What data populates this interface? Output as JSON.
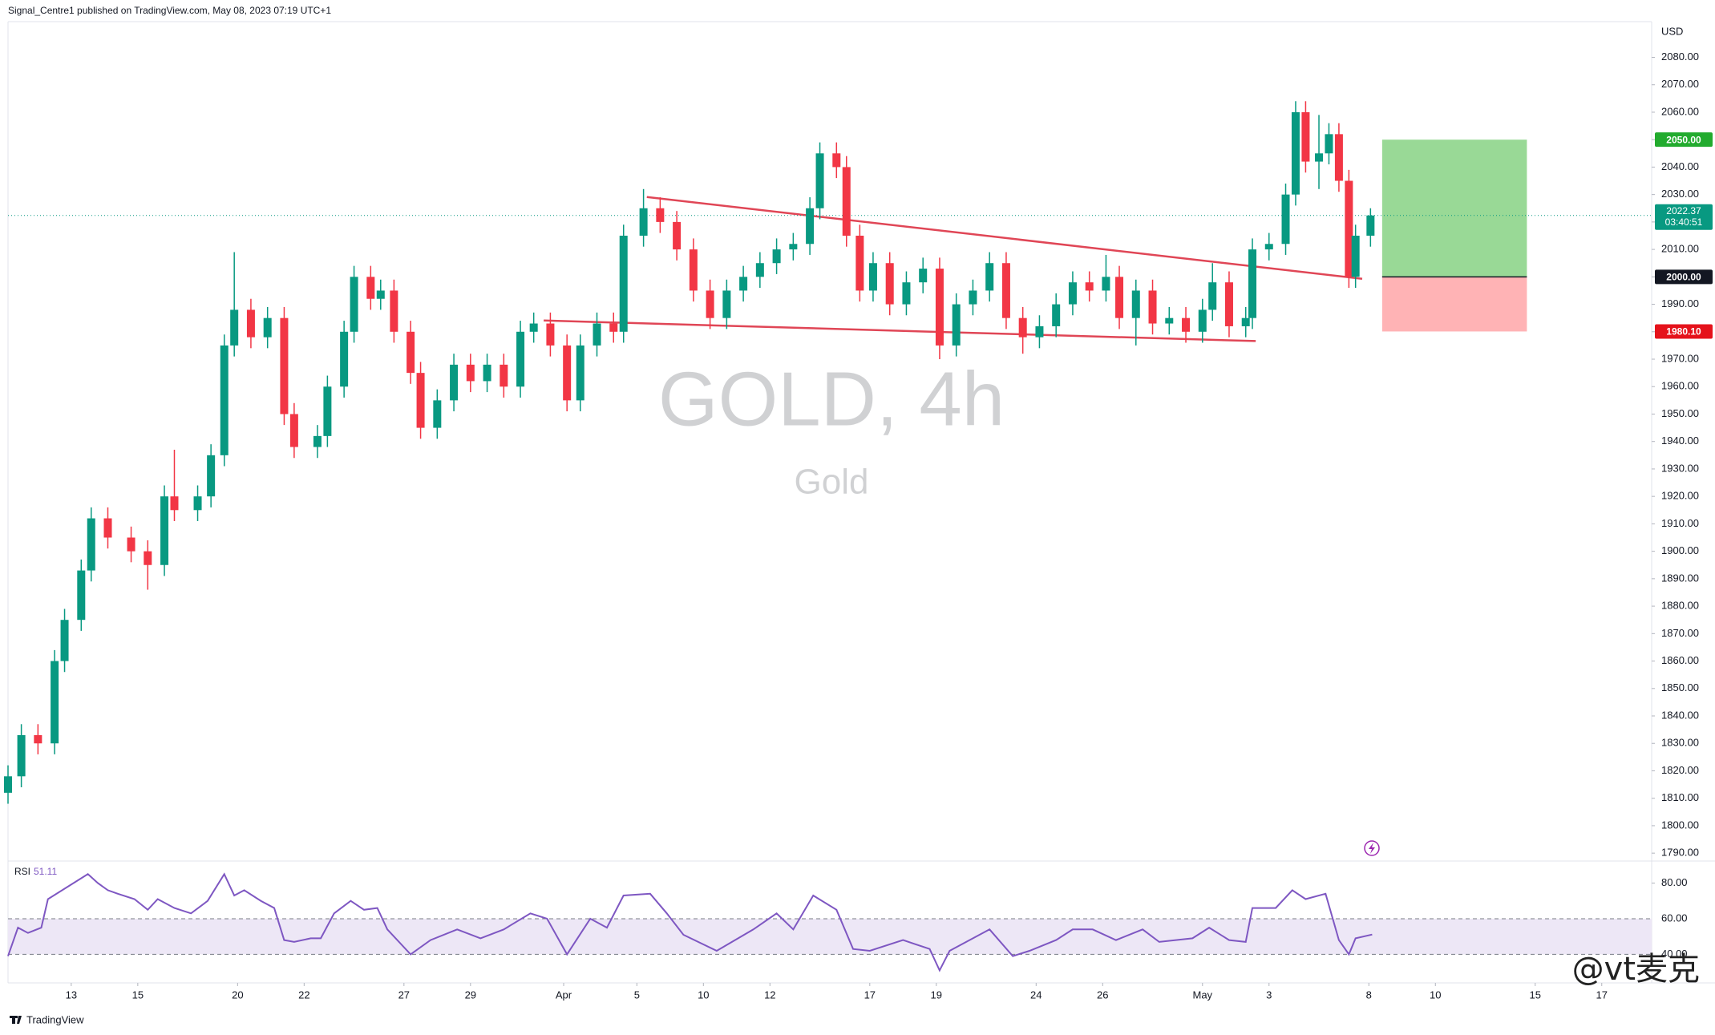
{
  "chart_data": {
    "type": "candlestick",
    "header": "Signal_Centre1 published on TradingView.com, May 08, 2023 07:19 UTC+1",
    "title": "GOLD, 4h",
    "subtitle": "Gold",
    "currency": "USD",
    "branding": "TradingView",
    "watermark": "@vt麦克",
    "up_color": "#089981",
    "down_color": "#f23645",
    "x": [
      -1.9,
      -1.5,
      -1.0,
      -0.5,
      -0.2,
      0.3,
      0.6,
      1.1,
      1.8,
      2.3,
      2.8,
      3.1,
      3.8,
      4.2,
      4.6,
      4.9,
      5.4,
      5.9,
      6.4,
      6.7,
      7.4,
      7.7,
      8.2,
      8.5,
      9.0,
      9.3,
      9.7,
      10.2,
      10.5,
      11.0,
      11.5,
      12.0,
      12.5,
      13.0,
      13.5,
      13.9,
      14.4,
      14.9,
      15.3,
      15.8,
      16.3,
      16.6,
      17.2,
      17.7,
      18.2,
      18.7,
      19.2,
      19.7,
      20.2,
      20.7,
      21.2,
      21.7,
      22.2,
      22.5,
      23.0,
      23.3,
      23.7,
      24.1,
      24.6,
      25.1,
      25.6,
      26.1,
      26.6,
      27.1,
      27.6,
      28.1,
      28.6,
      29.1,
      29.6,
      30.1,
      30.6,
      31.1,
      31.5,
      32.0,
      32.5,
      33.0,
      33.5,
      34.0,
      34.3,
      34.8,
      35.3,
      35.5,
      36.0,
      36.5,
      36.8,
      37.1,
      37.5,
      37.8,
      38.1,
      38.4,
      38.6,
      39.05
    ],
    "open": [
      1812,
      1818,
      1833,
      1830,
      1860,
      1875,
      1893,
      1912,
      1905,
      1900,
      1895,
      1920,
      1915,
      1920,
      1935,
      1975,
      1988,
      1978,
      1985,
      1950,
      1938,
      1942,
      1960,
      1980,
      2000,
      1992,
      1995,
      1980,
      1965,
      1945,
      1955,
      1968,
      1962,
      1968,
      1960,
      1980,
      1983,
      1975,
      1955,
      1975,
      1983,
      1980,
      2015,
      2025,
      2020,
      2010,
      1995,
      1985,
      1995,
      2000,
      2005,
      2010,
      2012,
      2025,
      2045,
      2040,
      2015,
      1995,
      2005,
      1990,
      1998,
      2003,
      1975,
      1990,
      1995,
      2005,
      1985,
      1978,
      1982,
      1990,
      1998,
      1995,
      2000,
      1985,
      1995,
      1983,
      1985,
      1980,
      1988,
      1998,
      1982,
      1985,
      2010,
      2012,
      2030,
      2060,
      2042,
      2045,
      2052,
      2035,
      2000,
      2015
    ],
    "high": [
      1822,
      1837,
      1837,
      1864,
      1879,
      1897,
      1916,
      1916,
      1909,
      1904,
      1924,
      1937,
      1924,
      1939,
      1979,
      2009,
      1992,
      1989,
      1989,
      1954,
      1946,
      1964,
      1984,
      2004,
      2004,
      1999,
      1999,
      1984,
      1969,
      1959,
      1972,
      1972,
      1972,
      1972,
      1984,
      1987,
      1987,
      1979,
      1979,
      1987,
      1987,
      2019,
      2032,
      2029,
      2024,
      2014,
      1999,
      1999,
      2004,
      2009,
      2014,
      2016,
      2029,
      2049,
      2049,
      2044,
      2019,
      2009,
      2009,
      2002,
      2007,
      2007,
      1994,
      1999,
      2009,
      2009,
      1989,
      1986,
      1994,
      2002,
      2002,
      2008,
      2004,
      1999,
      1999,
      1989,
      1989,
      1992,
      2005,
      2002,
      1989,
      2014,
      2016,
      2034,
      2064,
      2064,
      2059,
      2056,
      2056,
      2039,
      2019,
      2025
    ],
    "low": [
      1808,
      1814,
      1826,
      1826,
      1856,
      1871,
      1889,
      1901,
      1896,
      1886,
      1891,
      1911,
      1911,
      1916,
      1931,
      1971,
      1974,
      1974,
      1946,
      1934,
      1934,
      1938,
      1956,
      1976,
      1988,
      1988,
      1976,
      1961,
      1941,
      1941,
      1951,
      1958,
      1958,
      1956,
      1956,
      1976,
      1971,
      1951,
      1951,
      1971,
      1976,
      1976,
      2011,
      2016,
      2006,
      1991,
      1981,
      1981,
      1991,
      1996,
      2001,
      2006,
      2008,
      2021,
      2036,
      2011,
      1991,
      1991,
      1986,
      1986,
      1994,
      1970,
      1971,
      1986,
      1991,
      1981,
      1972,
      1974,
      1978,
      1986,
      1991,
      1991,
      1981,
      1975,
      1979,
      1979,
      1976,
      1976,
      1984,
      1978,
      1978,
      1981,
      2006,
      2008,
      2026,
      2038,
      2032,
      2041,
      2031,
      1996,
      1996,
      2011
    ],
    "close": [
      1818,
      1833,
      1830,
      1860,
      1875,
      1893,
      1912,
      1905,
      1900,
      1895,
      1920,
      1915,
      1920,
      1935,
      1975,
      1988,
      1978,
      1985,
      1950,
      1938,
      1942,
      1960,
      1980,
      2000,
      1992,
      1995,
      1980,
      1965,
      1945,
      1955,
      1968,
      1962,
      1968,
      1960,
      1980,
      1983,
      1975,
      1955,
      1975,
      1983,
      1980,
      2015,
      2025,
      2020,
      2010,
      1995,
      1985,
      1995,
      2000,
      2005,
      2010,
      2012,
      2025,
      2045,
      2040,
      2015,
      1995,
      2005,
      1990,
      1998,
      2003,
      1975,
      1990,
      1995,
      2005,
      1985,
      1978,
      1982,
      1990,
      1998,
      1995,
      2000,
      1985,
      1995,
      1983,
      1985,
      1980,
      1988,
      1998,
      1982,
      1985,
      2010,
      2012,
      2030,
      2060,
      2042,
      2045,
      2052,
      2035,
      2000,
      2015,
      2022.37
    ],
    "xlim": [
      -1.9,
      47.5
    ],
    "xticks": [
      {
        "value": 0,
        "label": "13"
      },
      {
        "value": 2,
        "label": "15"
      },
      {
        "value": 5,
        "label": "20"
      },
      {
        "value": 7,
        "label": "22"
      },
      {
        "value": 10,
        "label": "27"
      },
      {
        "value": 12,
        "label": "29"
      },
      {
        "value": 14.8,
        "label": "Apr"
      },
      {
        "value": 17,
        "label": "5"
      },
      {
        "value": 19,
        "label": "10"
      },
      {
        "value": 21,
        "label": "12"
      },
      {
        "value": 24,
        "label": "17"
      },
      {
        "value": 26,
        "label": "19"
      },
      {
        "value": 29,
        "label": "24"
      },
      {
        "value": 31,
        "label": "26"
      },
      {
        "value": 34,
        "label": "May"
      },
      {
        "value": 36,
        "label": "3"
      },
      {
        "value": 39,
        "label": "8"
      },
      {
        "value": 41,
        "label": "10"
      },
      {
        "value": 44,
        "label": "15"
      },
      {
        "value": 46,
        "label": "17"
      }
    ],
    "ylim": [
      1788,
      2093
    ],
    "yticks": [
      {
        "value": 1790,
        "label": "1790.00"
      },
      {
        "value": 1800,
        "label": "1800.00"
      },
      {
        "value": 1810,
        "label": "1810.00"
      },
      {
        "value": 1820,
        "label": "1820.00"
      },
      {
        "value": 1830,
        "label": "1830.00"
      },
      {
        "value": 1840,
        "label": "1840.00"
      },
      {
        "value": 1850,
        "label": "1850.00"
      },
      {
        "value": 1860,
        "label": "1860.00"
      },
      {
        "value": 1870,
        "label": "1870.00"
      },
      {
        "value": 1880,
        "label": "1880.00"
      },
      {
        "value": 1890,
        "label": "1890.00"
      },
      {
        "value": 1900,
        "label": "1900.00"
      },
      {
        "value": 1910,
        "label": "1910.00"
      },
      {
        "value": 1920,
        "label": "1920.00"
      },
      {
        "value": 1930,
        "label": "1930.00"
      },
      {
        "value": 1940,
        "label": "1940.00"
      },
      {
        "value": 1950,
        "label": "1950.00"
      },
      {
        "value": 1960,
        "label": "1960.00"
      },
      {
        "value": 1970,
        "label": "1970.00"
      },
      {
        "value": 1980,
        "label": "1980.00"
      },
      {
        "value": 1990,
        "label": "1990.00"
      },
      {
        "value": 2000,
        "label": "2000.00"
      },
      {
        "value": 2010,
        "label": "2010.00"
      },
      {
        "value": 2020,
        "label": "2020.00"
      },
      {
        "value": 2030,
        "label": "2030.00"
      },
      {
        "value": 2040,
        "label": "2040.00"
      },
      {
        "value": 2050,
        "label": "2050.00"
      },
      {
        "value": 2060,
        "label": "2060.00"
      },
      {
        "value": 2070,
        "label": "2070.00"
      },
      {
        "value": 2080,
        "label": "2080.00"
      }
    ],
    "countdown": "03:40:51",
    "trendlines": [
      {
        "x": [
          17.3,
          38.8
        ],
        "y": [
          2029.1,
          1999.3
        ],
        "color": "#e04656"
      },
      {
        "x": [
          14.2,
          35.6
        ],
        "y": [
          1984.1,
          1976.6
        ],
        "color": "#e04656"
      }
    ],
    "position": {
      "x": [
        39.4,
        43.75
      ],
      "target": {
        "value": 2050,
        "label": "2050.00"
      },
      "entry": {
        "value": 2000,
        "label": "2000.00"
      },
      "stop": {
        "value": 1980.1,
        "label": "1980.10"
      },
      "profit_color": "#99d996",
      "loss_color": "#ffb3b5",
      "target_color": "#22ab2e",
      "entry_color": "#131722",
      "stop_color": "#e5121b"
    },
    "rsi": {
      "name": "RSI",
      "value_label": "51.11",
      "color": "#7e57c2",
      "band_color": "#ede7f6",
      "x": [
        -1.9,
        -1.6,
        -1.3,
        -0.9,
        -0.7,
        0.5,
        0.8,
        1.1,
        1.4,
        1.9,
        2.3,
        2.6,
        3.1,
        3.6,
        4.1,
        4.6,
        4.9,
        5.2,
        5.7,
        6.1,
        6.4,
        6.7,
        7.2,
        7.5,
        7.9,
        8.4,
        8.8,
        9.2,
        9.5,
        10.2,
        10.8,
        11.6,
        12.3,
        13.0,
        13.8,
        14.3,
        14.9,
        15.6,
        16.1,
        16.6,
        17.4,
        17.9,
        18.4,
        19.4,
        20.5,
        21.2,
        21.7,
        22.3,
        23.0,
        23.5,
        24.0,
        25.0,
        25.8,
        26.1,
        26.4,
        27.6,
        28.3,
        28.8,
        29.6,
        30.1,
        30.7,
        31.4,
        32.2,
        32.7,
        33.7,
        34.2,
        34.8,
        35.3,
        35.5,
        36.2,
        36.7,
        37.1,
        37.7,
        38.1,
        38.4,
        38.6,
        39.1
      ],
      "values": [
        39,
        55,
        52,
        55,
        71,
        85,
        80,
        76,
        74,
        71,
        65,
        71,
        66,
        63,
        70,
        85,
        73,
        76,
        70,
        66,
        48,
        47,
        49,
        49,
        63,
        70,
        65,
        66,
        54,
        40,
        48,
        54,
        49,
        54,
        63,
        60,
        40,
        60,
        55,
        73,
        74,
        63,
        51,
        42,
        54,
        63,
        54,
        73,
        65,
        43,
        42,
        48,
        43,
        31,
        42,
        54,
        39,
        42,
        48,
        54,
        54,
        48,
        54,
        47,
        49,
        55,
        48,
        47,
        66,
        66,
        76,
        71,
        74,
        48,
        40,
        49,
        51.11
      ],
      "ylim": [
        24,
        91
      ],
      "yticks": [
        {
          "value": 80,
          "label": "80.00"
        },
        {
          "value": 60,
          "label": "60.00"
        },
        {
          "value": 40,
          "label": "40.00"
        }
      ]
    }
  }
}
